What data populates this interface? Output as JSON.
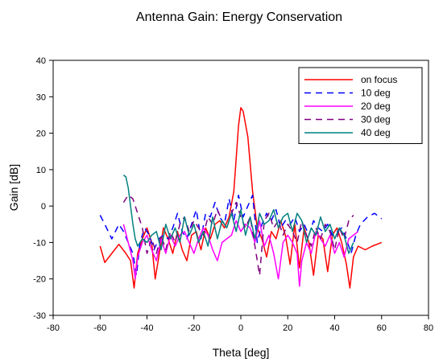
{
  "chart_data": {
    "type": "line",
    "title": "Antenna Gain: Energy Conservation",
    "xlabel": "Theta [deg]",
    "ylabel": "Gain [dB]",
    "xlim": [
      -80,
      80
    ],
    "ylim": [
      -30,
      40
    ],
    "xticks": [
      -80,
      -60,
      -40,
      -20,
      0,
      20,
      40,
      60,
      80
    ],
    "yticks": [
      -30,
      -20,
      -10,
      0,
      10,
      20,
      30,
      40
    ],
    "grid": false,
    "legend_position": "top-right",
    "series": [
      {
        "name": "on focus",
        "color": "#ff0000",
        "dash": "solid",
        "x": [
          -60,
          -58,
          -55,
          -52,
          -49,
          -47,
          -45.5,
          -44,
          -42,
          -40,
          -38,
          -36.5,
          -35,
          -33,
          -31,
          -29,
          -27,
          -25,
          -23,
          -21,
          -19,
          -17,
          -15,
          -13,
          -11,
          -9,
          -7,
          -5,
          -3,
          -1,
          0,
          1,
          3,
          5,
          7,
          9,
          11,
          13,
          15,
          17,
          19,
          21,
          23,
          25,
          27,
          29,
          31,
          33,
          35,
          37,
          39,
          41,
          43,
          45,
          46.5,
          48,
          50,
          53,
          56,
          60
        ],
        "y": [
          -11,
          -15.5,
          -13,
          -10.5,
          -13,
          -15,
          -22.5,
          -13,
          -9,
          -6,
          -10,
          -20,
          -14,
          -6,
          -9,
          -13,
          -7,
          -12,
          -15,
          -8,
          -7,
          -12,
          -6,
          -9,
          -5,
          -4,
          -6,
          -3,
          4,
          22,
          27,
          26,
          19,
          4,
          -6,
          -9,
          -14,
          -7,
          -9,
          -4,
          -8,
          -16,
          -5,
          -17,
          -6,
          -10,
          -19,
          -8,
          -9,
          -18,
          -8,
          -6,
          -10,
          -16,
          -22.5,
          -14,
          -11,
          -12,
          -11,
          -10
        ]
      },
      {
        "name": "10 deg",
        "color": "#0000ff",
        "dash": "8,6",
        "x": [
          -60,
          -58,
          -55,
          -52,
          -50,
          -48,
          -46,
          -44.5,
          -43,
          -41,
          -39,
          -37,
          -35,
          -33,
          -31,
          -29,
          -27,
          -25,
          -23,
          -21,
          -19,
          -17,
          -15,
          -13,
          -11,
          -9,
          -7,
          -5,
          -3,
          -1,
          1,
          3,
          5,
          7,
          9,
          11,
          13,
          15,
          17,
          19,
          21,
          23,
          25,
          27,
          29,
          31,
          33,
          35,
          37,
          39,
          41,
          43,
          45,
          47,
          49,
          51,
          54,
          57,
          60
        ],
        "y": [
          -2.5,
          -5,
          -9,
          -5,
          -7,
          -10,
          -13,
          -19,
          -10,
          -6,
          -8,
          -12,
          -9,
          -8,
          -9,
          -6,
          -2,
          -7,
          -9,
          -5,
          -1,
          -9,
          -2,
          -3,
          1,
          -3,
          -5,
          2,
          -4,
          3,
          -3,
          0,
          3,
          -10,
          -5,
          -2,
          -4,
          -1,
          -6,
          -4,
          -5,
          -3,
          -7,
          -5,
          -8,
          -4,
          -6,
          -7,
          -5,
          -8,
          -7,
          -6,
          -9,
          -13,
          -8,
          -5,
          -3,
          -2,
          -3.5
        ]
      },
      {
        "name": "20 deg",
        "color": "#ff00ff",
        "dash": "solid",
        "x": [
          -50,
          -48,
          -46,
          -45,
          -44,
          -42,
          -40,
          -38,
          -36,
          -34,
          -32,
          -30,
          -28,
          -26,
          -24,
          -22,
          -20,
          -18,
          -16,
          -14,
          -12,
          -10,
          -8,
          -6,
          -4,
          -2,
          0,
          2,
          4,
          6,
          8,
          10,
          12,
          14,
          16,
          18,
          20,
          22,
          24,
          25,
          26,
          28,
          30,
          32,
          34,
          36,
          38,
          40,
          42,
          44,
          46,
          48,
          50
        ],
        "y": [
          -5,
          -10,
          -15,
          -20,
          -14,
          -10,
          -8,
          -12,
          -15,
          -9,
          -13,
          -8,
          -11,
          -8,
          -7,
          -10,
          -13,
          -9,
          -6,
          -8,
          -12,
          -15,
          -10,
          -9,
          -8,
          -4,
          -7,
          -5,
          -6,
          -10,
          -4,
          -11,
          -8,
          -13,
          -20,
          -10,
          -8,
          -10,
          -13,
          -22,
          -15,
          -10,
          -13,
          -7,
          -9,
          -11,
          -8,
          -13,
          -10,
          -14,
          -9,
          -8,
          -7
        ]
      },
      {
        "name": "30 deg",
        "color": "#800080",
        "dash": "8,6",
        "x": [
          -50,
          -48,
          -46,
          -44,
          -42,
          -40,
          -38,
          -36,
          -34,
          -32,
          -30,
          -28,
          -26,
          -24,
          -22,
          -20,
          -18,
          -16,
          -14,
          -12,
          -10,
          -8,
          -6,
          -4,
          -2,
          0,
          2,
          4,
          6,
          8,
          10,
          12,
          14,
          16,
          18,
          20,
          22,
          24,
          26,
          28,
          30,
          32,
          34,
          36,
          38,
          40,
          42,
          44,
          46,
          48
        ],
        "y": [
          1,
          3,
          2,
          -2,
          -6,
          -13,
          -9,
          -13,
          -8,
          -12,
          -7,
          -10,
          -5,
          -3,
          -7,
          -4,
          -6,
          -8,
          -3,
          -5,
          -1,
          -4,
          -6,
          -2,
          1,
          -3,
          -6,
          -3,
          -11,
          -19,
          -4,
          -2,
          -6,
          -4,
          -8,
          -5,
          -7,
          -10,
          -4,
          -8,
          -11,
          -6,
          -9,
          -5,
          -7,
          -12,
          -6,
          -9,
          -4,
          -2.5
        ]
      },
      {
        "name": "40 deg",
        "color": "#008080",
        "dash": "solid",
        "x": [
          -50,
          -49,
          -48,
          -47,
          -46,
          -45,
          -44,
          -42,
          -40,
          -38,
          -36,
          -34,
          -32,
          -30,
          -28,
          -26,
          -24,
          -22,
          -20,
          -18,
          -16,
          -14,
          -12,
          -10,
          -8,
          -6,
          -4,
          -2,
          0,
          2,
          4,
          6,
          8,
          10,
          12,
          14,
          16,
          18,
          20,
          22,
          24,
          26,
          28,
          30,
          32,
          34,
          36,
          38,
          40,
          42,
          44,
          46,
          48
        ],
        "y": [
          8.5,
          8,
          5,
          0,
          -5,
          -9,
          -11,
          -9,
          -10,
          -8,
          -7,
          -12,
          -5,
          -9,
          -6,
          -10,
          -3,
          -8,
          -5,
          -10,
          -7,
          -11,
          -3,
          -9,
          -4,
          -6,
          -2,
          -7,
          -1,
          -8,
          -3,
          -9,
          -2,
          -5,
          -4,
          -1,
          -6,
          -3,
          -2,
          -7,
          -2,
          -4,
          -10,
          -6,
          -8,
          -3,
          -7,
          -5,
          -9,
          -6,
          -8,
          -13,
          -10
        ]
      }
    ],
    "annotations": []
  }
}
